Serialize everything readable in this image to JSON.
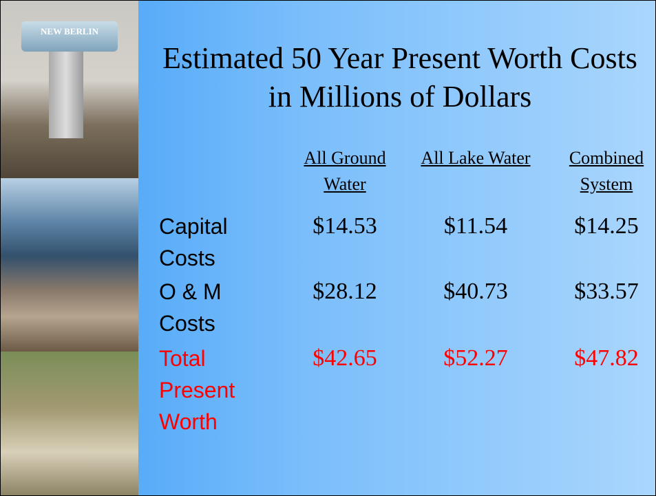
{
  "title": "Estimated 50 Year Present Worth Costs in Millions of Dollars",
  "photo_sign": "NEW BERLIN",
  "table": {
    "columns": [
      "All Ground Water",
      "All Lake Water",
      "Combined System"
    ],
    "rows": [
      {
        "label": "Capital Costs",
        "values": [
          "$14.53",
          "$11.54",
          "$14.25"
        ]
      },
      {
        "label": "O & M Costs",
        "values": [
          "$28.12",
          "$40.73",
          "$33.57"
        ]
      },
      {
        "label": "Total Present Worth",
        "values": [
          "$42.65",
          "$52.27",
          "$47.82"
        ]
      }
    ]
  }
}
